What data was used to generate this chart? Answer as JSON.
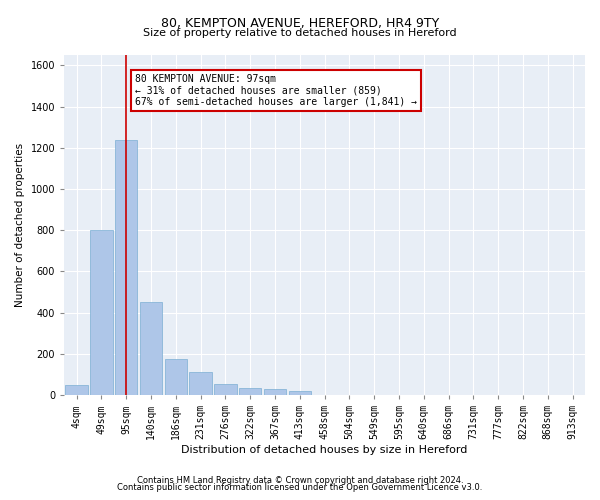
{
  "title_line1": "80, KEMPTON AVENUE, HEREFORD, HR4 9TY",
  "title_line2": "Size of property relative to detached houses in Hereford",
  "xlabel": "Distribution of detached houses by size in Hereford",
  "ylabel": "Number of detached properties",
  "footnote1": "Contains HM Land Registry data © Crown copyright and database right 2024.",
  "footnote2": "Contains public sector information licensed under the Open Government Licence v3.0.",
  "annotation_line1": "80 KEMPTON AVENUE: 97sqm",
  "annotation_line2": "← 31% of detached houses are smaller (859)",
  "annotation_line3": "67% of semi-detached houses are larger (1,841) →",
  "bar_labels": [
    "4sqm",
    "49sqm",
    "95sqm",
    "140sqm",
    "186sqm",
    "231sqm",
    "276sqm",
    "322sqm",
    "367sqm",
    "413sqm",
    "458sqm",
    "504sqm",
    "549sqm",
    "595sqm",
    "640sqm",
    "686sqm",
    "731sqm",
    "777sqm",
    "822sqm",
    "868sqm",
    "913sqm"
  ],
  "bar_values": [
    50,
    800,
    1240,
    450,
    175,
    110,
    55,
    35,
    30,
    20,
    0,
    0,
    0,
    0,
    0,
    0,
    0,
    0,
    0,
    0,
    0
  ],
  "bar_color": "#aec6e8",
  "bar_edge_color": "#7bafd4",
  "vline_x_index": 2,
  "vline_color": "#cc0000",
  "annotation_box_color": "#cc0000",
  "bg_color": "#e8eef6",
  "ylim": [
    0,
    1650
  ],
  "yticks": [
    0,
    200,
    400,
    600,
    800,
    1000,
    1200,
    1400,
    1600
  ],
  "title1_fontsize": 9,
  "title2_fontsize": 8,
  "xlabel_fontsize": 8,
  "ylabel_fontsize": 7.5,
  "tick_fontsize": 7,
  "annot_fontsize": 7,
  "footnote_fontsize": 6
}
